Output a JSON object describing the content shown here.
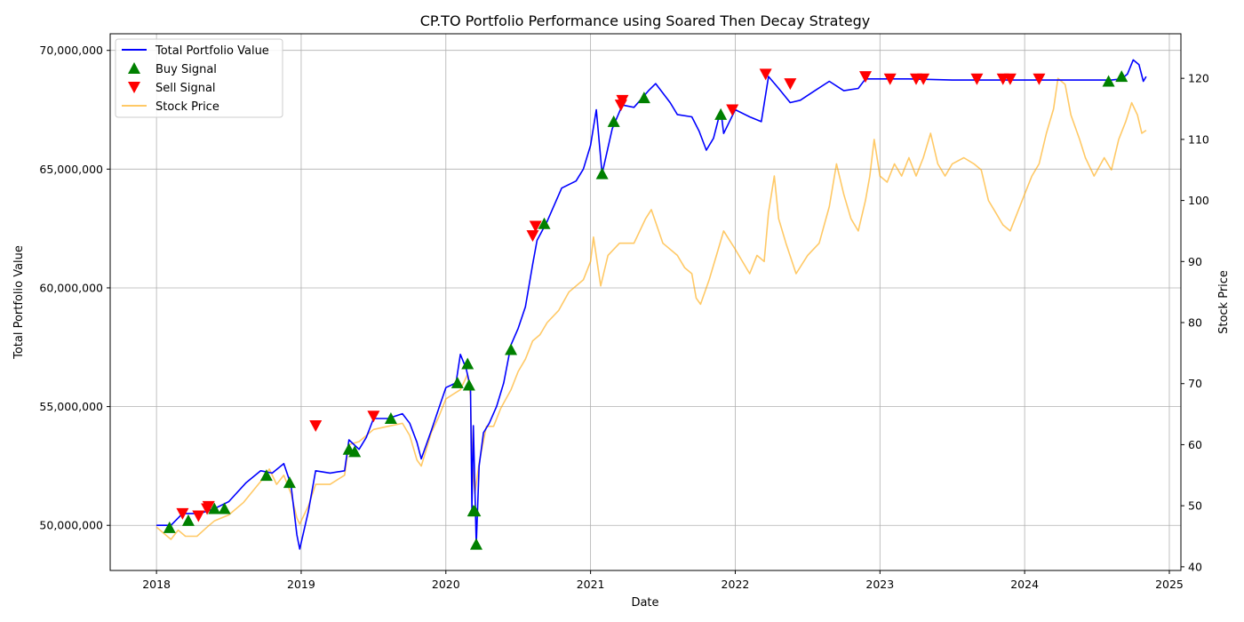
{
  "chart_data": {
    "type": "line",
    "title": "CP.TO Portfolio Performance using Soared Then Decay Strategy",
    "xlabel": "Date",
    "ylabel_left": "Total Portfolio Value",
    "ylabel_right": "Stock Price",
    "grid": true,
    "legend_position": "top-left",
    "xlim": [
      2017.68,
      2025.08
    ],
    "ylim_left": [
      48100000,
      70700000
    ],
    "ylim_right": [
      39.4,
      127.3
    ],
    "x_ticks": [
      2018,
      2019,
      2020,
      2021,
      2022,
      2023,
      2024,
      2025
    ],
    "x_tick_labels": [
      "2018",
      "2019",
      "2020",
      "2021",
      "2022",
      "2023",
      "2024",
      "2025"
    ],
    "y_left_ticks": [
      50000000,
      55000000,
      60000000,
      65000000,
      70000000
    ],
    "y_left_tick_labels": [
      "50,000,000",
      "55,000,000",
      "60,000,000",
      "65,000,000",
      "70,000,000"
    ],
    "y_right_ticks": [
      40,
      50,
      60,
      70,
      80,
      90,
      100,
      110,
      120
    ],
    "y_right_tick_labels": [
      "40",
      "50",
      "60",
      "70",
      "80",
      "90",
      "100",
      "110",
      "120"
    ],
    "legend": [
      {
        "label": "Total Portfolio Value",
        "kind": "line",
        "color": "#0000ff"
      },
      {
        "label": "Buy Signal",
        "kind": "marker-up",
        "color": "#008000"
      },
      {
        "label": "Sell Signal",
        "kind": "marker-down",
        "color": "#ff0000"
      },
      {
        "label": "Stock Price",
        "kind": "line",
        "color": "#ffa500",
        "opacity": 0.6
      }
    ],
    "series": [
      {
        "name": "Total Portfolio Value",
        "axis": "left",
        "color": "#0000ff",
        "points": [
          [
            2018.0,
            50000000
          ],
          [
            2018.1,
            50000000
          ],
          [
            2018.18,
            50500000
          ],
          [
            2018.3,
            50500000
          ],
          [
            2018.4,
            50700000
          ],
          [
            2018.5,
            51000000
          ],
          [
            2018.62,
            51800000
          ],
          [
            2018.72,
            52300000
          ],
          [
            2018.8,
            52200000
          ],
          [
            2018.88,
            52600000
          ],
          [
            2018.93,
            51700000
          ],
          [
            2018.97,
            49600000
          ],
          [
            2018.99,
            49000000
          ],
          [
            2019.05,
            50600000
          ],
          [
            2019.1,
            52300000
          ],
          [
            2019.2,
            52200000
          ],
          [
            2019.3,
            52300000
          ],
          [
            2019.33,
            53600000
          ],
          [
            2019.4,
            53200000
          ],
          [
            2019.45,
            53700000
          ],
          [
            2019.5,
            54500000
          ],
          [
            2019.6,
            54500000
          ],
          [
            2019.7,
            54700000
          ],
          [
            2019.75,
            54300000
          ],
          [
            2019.8,
            53500000
          ],
          [
            2019.83,
            52800000
          ],
          [
            2019.9,
            54000000
          ],
          [
            2019.95,
            54900000
          ],
          [
            2020.0,
            55800000
          ],
          [
            2020.07,
            56000000
          ],
          [
            2020.1,
            57200000
          ],
          [
            2020.14,
            56600000
          ],
          [
            2020.17,
            55800000
          ],
          [
            2020.18,
            50700000
          ],
          [
            2020.19,
            54200000
          ],
          [
            2020.21,
            49200000
          ],
          [
            2020.23,
            52500000
          ],
          [
            2020.26,
            53900000
          ],
          [
            2020.3,
            54300000
          ],
          [
            2020.35,
            55000000
          ],
          [
            2020.4,
            56000000
          ],
          [
            2020.45,
            57600000
          ],
          [
            2020.5,
            58300000
          ],
          [
            2020.55,
            59200000
          ],
          [
            2020.6,
            61000000
          ],
          [
            2020.63,
            62000000
          ],
          [
            2020.7,
            62800000
          ],
          [
            2020.8,
            64200000
          ],
          [
            2020.9,
            64500000
          ],
          [
            2020.95,
            65000000
          ],
          [
            2021.0,
            66000000
          ],
          [
            2021.04,
            67500000
          ],
          [
            2021.08,
            64800000
          ],
          [
            2021.15,
            66700000
          ],
          [
            2021.22,
            67700000
          ],
          [
            2021.3,
            67600000
          ],
          [
            2021.4,
            68300000
          ],
          [
            2021.45,
            68600000
          ],
          [
            2021.55,
            67800000
          ],
          [
            2021.6,
            67300000
          ],
          [
            2021.7,
            67200000
          ],
          [
            2021.75,
            66600000
          ],
          [
            2021.8,
            65800000
          ],
          [
            2021.85,
            66300000
          ],
          [
            2021.9,
            67500000
          ],
          [
            2021.92,
            66500000
          ],
          [
            2022.0,
            67500000
          ],
          [
            2022.1,
            67200000
          ],
          [
            2022.18,
            67000000
          ],
          [
            2022.23,
            68900000
          ],
          [
            2022.3,
            68400000
          ],
          [
            2022.38,
            67800000
          ],
          [
            2022.45,
            67900000
          ],
          [
            2022.55,
            68300000
          ],
          [
            2022.65,
            68700000
          ],
          [
            2022.75,
            68300000
          ],
          [
            2022.85,
            68400000
          ],
          [
            2022.9,
            68800000
          ],
          [
            2023.2,
            68800000
          ],
          [
            2023.5,
            68750000
          ],
          [
            2024.0,
            68750000
          ],
          [
            2024.5,
            68750000
          ],
          [
            2024.6,
            68750000
          ],
          [
            2024.67,
            68800000
          ],
          [
            2024.71,
            69000000
          ],
          [
            2024.75,
            69600000
          ],
          [
            2024.79,
            69400000
          ],
          [
            2024.82,
            68700000
          ],
          [
            2024.84,
            68900000
          ]
        ]
      },
      {
        "name": "Stock Price",
        "axis": "right",
        "color": "#ffa500",
        "points": [
          [
            2018.0,
            46.5
          ],
          [
            2018.05,
            45.5
          ],
          [
            2018.1,
            44.5
          ],
          [
            2018.15,
            46.0
          ],
          [
            2018.2,
            45.0
          ],
          [
            2018.28,
            45.0
          ],
          [
            2018.35,
            46.5
          ],
          [
            2018.4,
            47.5
          ],
          [
            2018.5,
            48.5
          ],
          [
            2018.6,
            50.5
          ],
          [
            2018.72,
            54.0
          ],
          [
            2018.78,
            56.0
          ],
          [
            2018.83,
            53.5
          ],
          [
            2018.88,
            55.0
          ],
          [
            2018.93,
            52.0
          ],
          [
            2018.97,
            48.0
          ],
          [
            2018.99,
            47.0
          ],
          [
            2019.05,
            50.0
          ],
          [
            2019.1,
            53.5
          ],
          [
            2019.2,
            53.5
          ],
          [
            2019.3,
            55.0
          ],
          [
            2019.33,
            60.0
          ],
          [
            2019.4,
            60.5
          ],
          [
            2019.5,
            62.5
          ],
          [
            2019.6,
            63.0
          ],
          [
            2019.7,
            63.5
          ],
          [
            2019.75,
            61.5
          ],
          [
            2019.8,
            57.5
          ],
          [
            2019.83,
            56.5
          ],
          [
            2019.9,
            62.0
          ],
          [
            2019.95,
            64.5
          ],
          [
            2020.0,
            67.5
          ],
          [
            2020.1,
            69.0
          ],
          [
            2020.15,
            71.5
          ],
          [
            2020.17,
            68.0
          ],
          [
            2020.18,
            58.0
          ],
          [
            2020.2,
            52.0
          ],
          [
            2020.23,
            57.0
          ],
          [
            2020.28,
            63.0
          ],
          [
            2020.33,
            63.0
          ],
          [
            2020.38,
            66.0
          ],
          [
            2020.45,
            69.0
          ],
          [
            2020.5,
            72.0
          ],
          [
            2020.55,
            74.0
          ],
          [
            2020.6,
            77.0
          ],
          [
            2020.65,
            78.0
          ],
          [
            2020.7,
            80.0
          ],
          [
            2020.78,
            82.0
          ],
          [
            2020.85,
            85.0
          ],
          [
            2020.95,
            87.0
          ],
          [
            2021.0,
            90.0
          ],
          [
            2021.02,
            94.0
          ],
          [
            2021.07,
            86.0
          ],
          [
            2021.12,
            91.0
          ],
          [
            2021.2,
            93.0
          ],
          [
            2021.3,
            93.0
          ],
          [
            2021.38,
            97.0
          ],
          [
            2021.42,
            98.5
          ],
          [
            2021.5,
            93.0
          ],
          [
            2021.6,
            91.0
          ],
          [
            2021.65,
            89.0
          ],
          [
            2021.7,
            88.0
          ],
          [
            2021.73,
            84.0
          ],
          [
            2021.76,
            83.0
          ],
          [
            2021.82,
            87.0
          ],
          [
            2021.87,
            91.0
          ],
          [
            2021.92,
            95.0
          ],
          [
            2022.0,
            92.0
          ],
          [
            2022.1,
            88.0
          ],
          [
            2022.15,
            91.0
          ],
          [
            2022.2,
            90.0
          ],
          [
            2022.23,
            98.0
          ],
          [
            2022.27,
            104.0
          ],
          [
            2022.3,
            97.0
          ],
          [
            2022.35,
            93.0
          ],
          [
            2022.42,
            88.0
          ],
          [
            2022.5,
            91.0
          ],
          [
            2022.58,
            93.0
          ],
          [
            2022.65,
            99.0
          ],
          [
            2022.7,
            106.0
          ],
          [
            2022.75,
            101.0
          ],
          [
            2022.8,
            97.0
          ],
          [
            2022.85,
            95.0
          ],
          [
            2022.9,
            100.0
          ],
          [
            2022.93,
            104.0
          ],
          [
            2022.96,
            110.0
          ],
          [
            2023.0,
            104.0
          ],
          [
            2023.05,
            103.0
          ],
          [
            2023.1,
            106.0
          ],
          [
            2023.15,
            104.0
          ],
          [
            2023.2,
            107.0
          ],
          [
            2023.25,
            104.0
          ],
          [
            2023.3,
            107.0
          ],
          [
            2023.35,
            111.0
          ],
          [
            2023.4,
            106.0
          ],
          [
            2023.45,
            104.0
          ],
          [
            2023.5,
            106.0
          ],
          [
            2023.58,
            107.0
          ],
          [
            2023.65,
            106.0
          ],
          [
            2023.7,
            105.0
          ],
          [
            2023.75,
            100.0
          ],
          [
            2023.8,
            98.0
          ],
          [
            2023.85,
            96.0
          ],
          [
            2023.9,
            95.0
          ],
          [
            2023.95,
            98.0
          ],
          [
            2024.0,
            101.0
          ],
          [
            2024.05,
            104.0
          ],
          [
            2024.1,
            106.0
          ],
          [
            2024.15,
            111.0
          ],
          [
            2024.2,
            115.0
          ],
          [
            2024.23,
            120.0
          ],
          [
            2024.28,
            119.0
          ],
          [
            2024.32,
            114.0
          ],
          [
            2024.38,
            110.0
          ],
          [
            2024.42,
            107.0
          ],
          [
            2024.48,
            104.0
          ],
          [
            2024.55,
            107.0
          ],
          [
            2024.6,
            105.0
          ],
          [
            2024.65,
            110.0
          ],
          [
            2024.7,
            113.0
          ],
          [
            2024.74,
            116.0
          ],
          [
            2024.78,
            114.0
          ],
          [
            2024.81,
            111.0
          ],
          [
            2024.84,
            111.5
          ]
        ]
      }
    ],
    "buy_signals": [
      [
        2018.09,
        49900000
      ],
      [
        2018.22,
        50200000
      ],
      [
        2018.4,
        50700000
      ],
      [
        2018.47,
        50700000
      ],
      [
        2018.76,
        52100000
      ],
      [
        2018.92,
        51800000
      ],
      [
        2019.33,
        53200000
      ],
      [
        2019.37,
        53100000
      ],
      [
        2019.62,
        54500000
      ],
      [
        2020.08,
        56000000
      ],
      [
        2020.15,
        56800000
      ],
      [
        2020.16,
        55900000
      ],
      [
        2020.19,
        50600000
      ],
      [
        2020.2,
        50600000
      ],
      [
        2020.21,
        49200000
      ],
      [
        2020.45,
        57400000
      ],
      [
        2020.68,
        62700000
      ],
      [
        2021.08,
        64800000
      ],
      [
        2021.16,
        67000000
      ],
      [
        2021.37,
        68000000
      ],
      [
        2021.9,
        67300000
      ],
      [
        2024.58,
        68700000
      ],
      [
        2024.67,
        68900000
      ]
    ],
    "sell_signals": [
      [
        2018.18,
        50500000
      ],
      [
        2018.29,
        50400000
      ],
      [
        2018.35,
        50700000
      ],
      [
        2018.36,
        50800000
      ],
      [
        2019.1,
        54200000
      ],
      [
        2019.5,
        54600000
      ],
      [
        2020.6,
        62200000
      ],
      [
        2020.62,
        62600000
      ],
      [
        2021.21,
        67700000
      ],
      [
        2021.22,
        67900000
      ],
      [
        2021.98,
        67500000
      ],
      [
        2022.21,
        69000000
      ],
      [
        2022.38,
        68600000
      ],
      [
        2022.9,
        68900000
      ],
      [
        2023.07,
        68800000
      ],
      [
        2023.25,
        68800000
      ],
      [
        2023.3,
        68800000
      ],
      [
        2023.67,
        68800000
      ],
      [
        2023.85,
        68800000
      ],
      [
        2023.9,
        68800000
      ],
      [
        2024.1,
        68800000
      ]
    ]
  }
}
